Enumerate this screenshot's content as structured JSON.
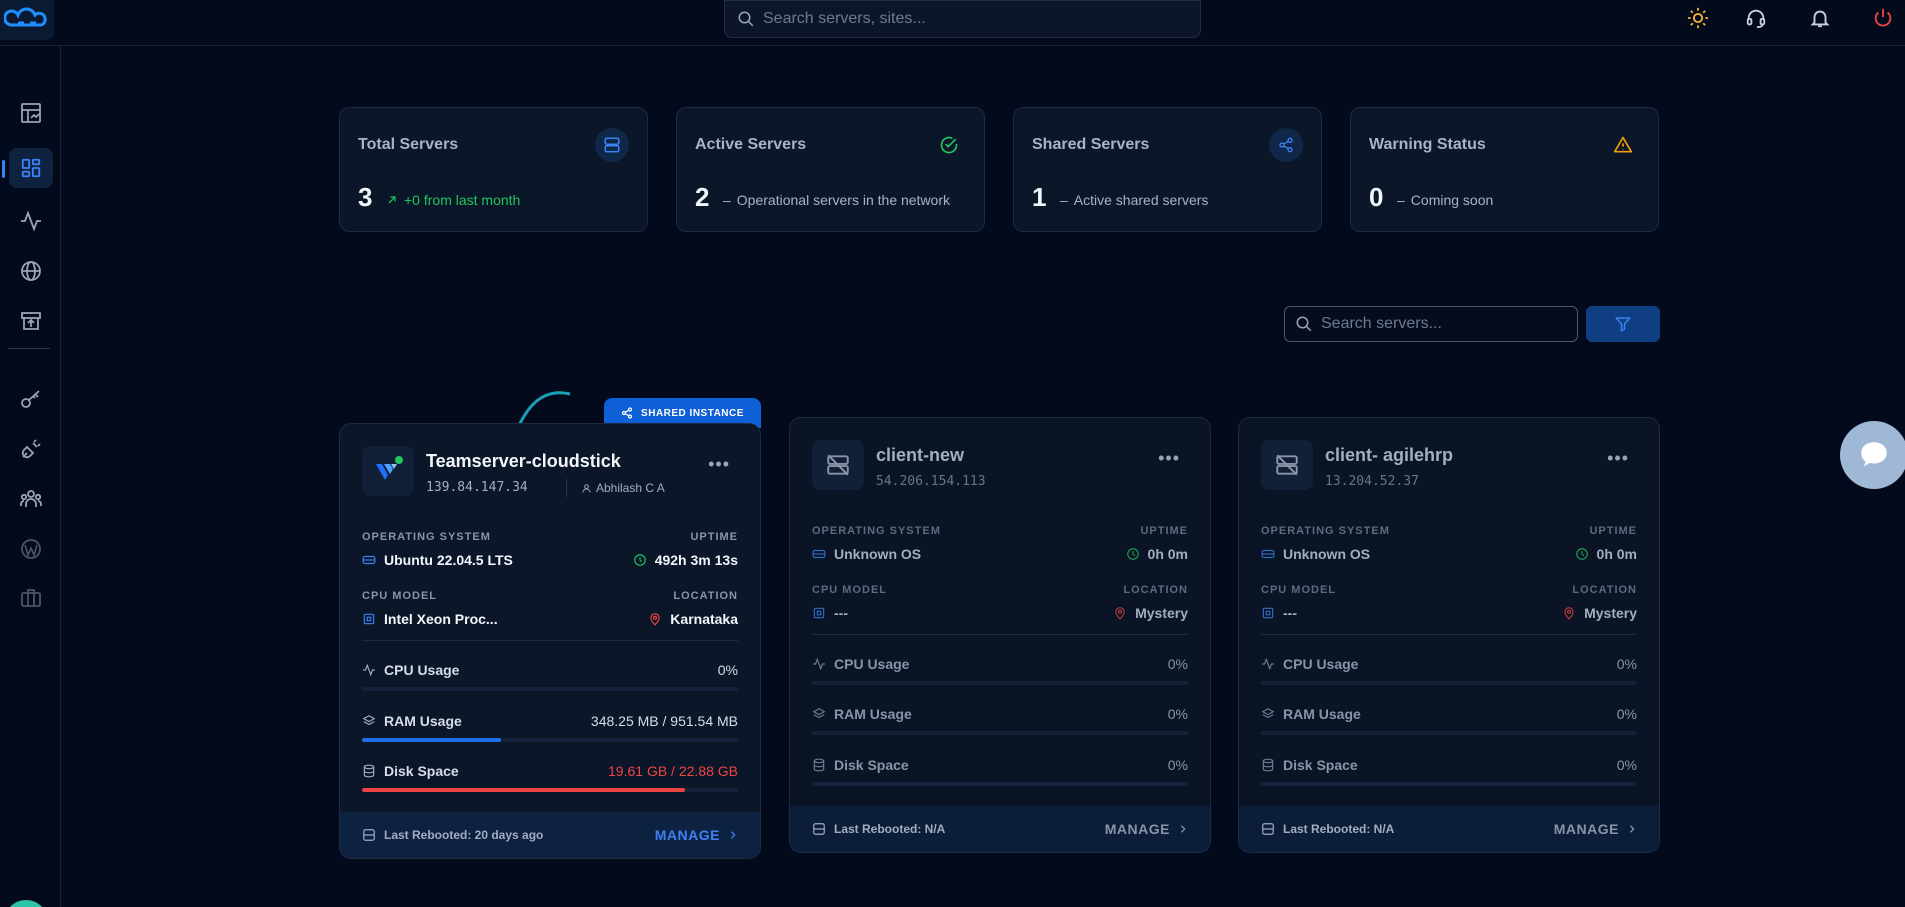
{
  "topbar": {
    "search_placeholder": "Search servers, sites..."
  },
  "stats": [
    {
      "label": "Total Servers",
      "value": "3",
      "sub": "+0 from last month",
      "icon": "server-icon",
      "color": "#3b82f6"
    },
    {
      "label": "Active Servers",
      "value": "2",
      "sub": "Operational servers in the network",
      "icon": "check-circle-icon",
      "color": "#22c55e"
    },
    {
      "label": "Shared Servers",
      "value": "1",
      "sub": "Active shared servers",
      "icon": "share-icon",
      "color": "#3b82f6"
    },
    {
      "label": "Warning Status",
      "value": "0",
      "sub": "Coming soon",
      "icon": "warning-icon",
      "color": "#f59e0b"
    }
  ],
  "list": {
    "search_placeholder": "Search servers..."
  },
  "shared_badge": "SHARED INSTANCE",
  "servers": [
    {
      "name": "Teamserver-cloudstick",
      "ip": "139.84.147.34",
      "owner": "Abhilash C A",
      "os_label": "OPERATING SYSTEM",
      "os": "Ubuntu 22.04.5 LTS",
      "uptime_label": "UPTIME",
      "uptime": "492h 3m 13s",
      "cpu_model_label": "CPU MODEL",
      "cpu_model": "Intel Xeon Proc...",
      "location_label": "LOCATION",
      "location": "Karnataka",
      "cpu_label": "CPU Usage",
      "cpu": "0%",
      "cpu_fraction": 0,
      "ram_label": "RAM Usage",
      "ram": "348.25 MB / 951.54 MB",
      "ram_fraction": 0.37,
      "disk_label": "Disk Space",
      "disk": "19.61 GB / 22.88 GB",
      "disk_fraction": 0.86,
      "rebooted": "Last Rebooted: 20 days ago",
      "manage": "MANAGE"
    },
    {
      "name": "client-new",
      "ip": "54.206.154.113",
      "os_label": "OPERATING SYSTEM",
      "os": "Unknown OS",
      "uptime_label": "UPTIME",
      "uptime": "0h 0m",
      "cpu_model_label": "CPU MODEL",
      "cpu_model": "---",
      "location_label": "LOCATION",
      "location": "Mystery",
      "cpu_label": "CPU Usage",
      "cpu": "0%",
      "ram_label": "RAM Usage",
      "ram": "0%",
      "disk_label": "Disk Space",
      "disk": "0%",
      "rebooted": "Last Rebooted: N/A",
      "manage": "MANAGE"
    },
    {
      "name": "client- agilehrp",
      "ip": "13.204.52.37",
      "os_label": "OPERATING SYSTEM",
      "os": "Unknown OS",
      "uptime_label": "UPTIME",
      "uptime": "0h 0m",
      "cpu_model_label": "CPU MODEL",
      "cpu_model": "---",
      "location_label": "LOCATION",
      "location": "Mystery",
      "cpu_label": "CPU Usage",
      "cpu": "0%",
      "ram_label": "RAM Usage",
      "ram": "0%",
      "disk_label": "Disk Space",
      "disk": "0%",
      "rebooted": "Last Rebooted: N/A",
      "manage": "MANAGE"
    }
  ],
  "colors": {
    "accent": "#3b82f6",
    "green": "#22c55e",
    "red": "#ef4444",
    "warning": "#f59e0b",
    "power": "#ef4444"
  }
}
